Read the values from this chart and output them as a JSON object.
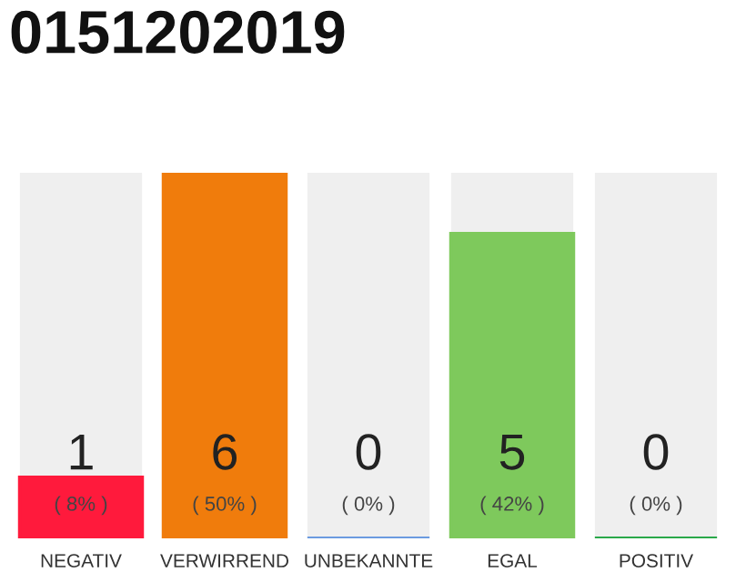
{
  "chart_data": {
    "type": "bar",
    "title": "0151202019",
    "categories": [
      "NEGATIV",
      "VERWIRREND",
      "UNBEKANNTE",
      "EGAL",
      "POSITIV"
    ],
    "values": [
      1,
      6,
      0,
      5,
      0
    ],
    "colors": [
      "#ff1a3c",
      "#f07c0c",
      "#6b9be0",
      "#7ec95c",
      "#2aa84a"
    ],
    "ylim": [
      0,
      6
    ],
    "value_labels": [
      "1",
      "6",
      "0",
      "5",
      "0"
    ],
    "annotations": [
      "( 8% )",
      "( 50% )",
      "( 0% )",
      "( 42% )",
      "( 0% )"
    ],
    "grid": false,
    "tick_labels": "x"
  }
}
